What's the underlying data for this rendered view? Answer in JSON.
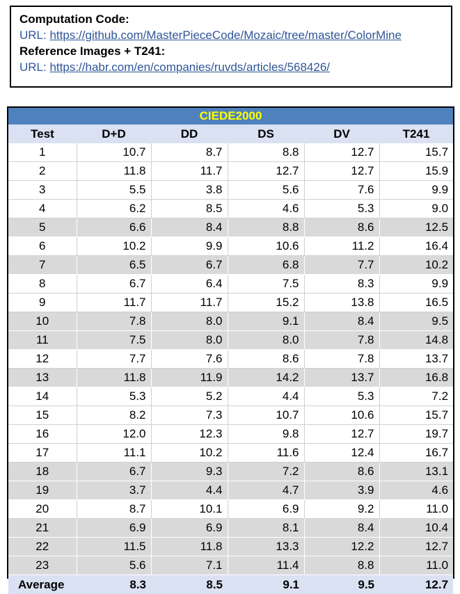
{
  "info": {
    "code_heading": "Computation Code:",
    "code_url_prefix": "URL: ",
    "code_url": "https://github.com/MasterPieceCode/Mozaic/tree/master/ColorMine",
    "ref_heading": "Reference Images + T241:",
    "ref_url_prefix": "URL: ",
    "ref_url": "https://habr.com/en/companies/ruvds/articles/568426/"
  },
  "table": {
    "title": "CIEDE2000",
    "title_color": "#ffff00",
    "title_bg": "#4f81bd",
    "headers": [
      "Test",
      "D+D",
      "DD",
      "DS",
      "DV",
      "T241"
    ],
    "rows": [
      {
        "test": "1",
        "values": [
          "10.7",
          "8.7",
          "8.8",
          "12.7",
          "15.7"
        ],
        "shaded": false
      },
      {
        "test": "2",
        "values": [
          "11.8",
          "11.7",
          "12.7",
          "12.7",
          "15.9"
        ],
        "shaded": false
      },
      {
        "test": "3",
        "values": [
          "5.5",
          "3.8",
          "5.6",
          "7.6",
          "9.9"
        ],
        "shaded": false
      },
      {
        "test": "4",
        "values": [
          "6.2",
          "8.5",
          "4.6",
          "5.3",
          "9.0"
        ],
        "shaded": false
      },
      {
        "test": "5",
        "values": [
          "6.6",
          "8.4",
          "8.8",
          "8.6",
          "12.5"
        ],
        "shaded": true
      },
      {
        "test": "6",
        "values": [
          "10.2",
          "9.9",
          "10.6",
          "11.2",
          "16.4"
        ],
        "shaded": false
      },
      {
        "test": "7",
        "values": [
          "6.5",
          "6.7",
          "6.8",
          "7.7",
          "10.2"
        ],
        "shaded": true
      },
      {
        "test": "8",
        "values": [
          "6.7",
          "6.4",
          "7.5",
          "8.3",
          "9.9"
        ],
        "shaded": false
      },
      {
        "test": "9",
        "values": [
          "11.7",
          "11.7",
          "15.2",
          "13.8",
          "16.5"
        ],
        "shaded": false
      },
      {
        "test": "10",
        "values": [
          "7.8",
          "8.0",
          "9.1",
          "8.4",
          "9.5"
        ],
        "shaded": true
      },
      {
        "test": "11",
        "values": [
          "7.5",
          "8.0",
          "8.0",
          "7.8",
          "14.8"
        ],
        "shaded": true
      },
      {
        "test": "12",
        "values": [
          "7.7",
          "7.6",
          "8.6",
          "7.8",
          "13.7"
        ],
        "shaded": false
      },
      {
        "test": "13",
        "values": [
          "11.8",
          "11.9",
          "14.2",
          "13.7",
          "16.8"
        ],
        "shaded": true
      },
      {
        "test": "14",
        "values": [
          "5.3",
          "5.2",
          "4.4",
          "5.3",
          "7.2"
        ],
        "shaded": false
      },
      {
        "test": "15",
        "values": [
          "8.2",
          "7.3",
          "10.7",
          "10.6",
          "15.7"
        ],
        "shaded": false
      },
      {
        "test": "16",
        "values": [
          "12.0",
          "12.3",
          "9.8",
          "12.7",
          "19.7"
        ],
        "shaded": false
      },
      {
        "test": "17",
        "values": [
          "11.1",
          "10.2",
          "11.6",
          "12.4",
          "16.7"
        ],
        "shaded": false
      },
      {
        "test": "18",
        "values": [
          "6.7",
          "9.3",
          "7.2",
          "8.6",
          "13.1"
        ],
        "shaded": true
      },
      {
        "test": "19",
        "values": [
          "3.7",
          "4.4",
          "4.7",
          "3.9",
          "4.6"
        ],
        "shaded": true
      },
      {
        "test": "20",
        "values": [
          "8.7",
          "10.1",
          "6.9",
          "9.2",
          "11.0"
        ],
        "shaded": false
      },
      {
        "test": "21",
        "values": [
          "6.9",
          "6.9",
          "8.1",
          "8.4",
          "10.4"
        ],
        "shaded": true
      },
      {
        "test": "22",
        "values": [
          "11.5",
          "11.8",
          "13.3",
          "12.2",
          "12.7"
        ],
        "shaded": true
      },
      {
        "test": "23",
        "values": [
          "5.6",
          "7.1",
          "11.4",
          "8.8",
          "11.0"
        ],
        "shaded": true
      }
    ],
    "average": {
      "label": "Average",
      "values": [
        "8.3",
        "8.5",
        "9.1",
        "9.5",
        "12.7"
      ]
    }
  }
}
